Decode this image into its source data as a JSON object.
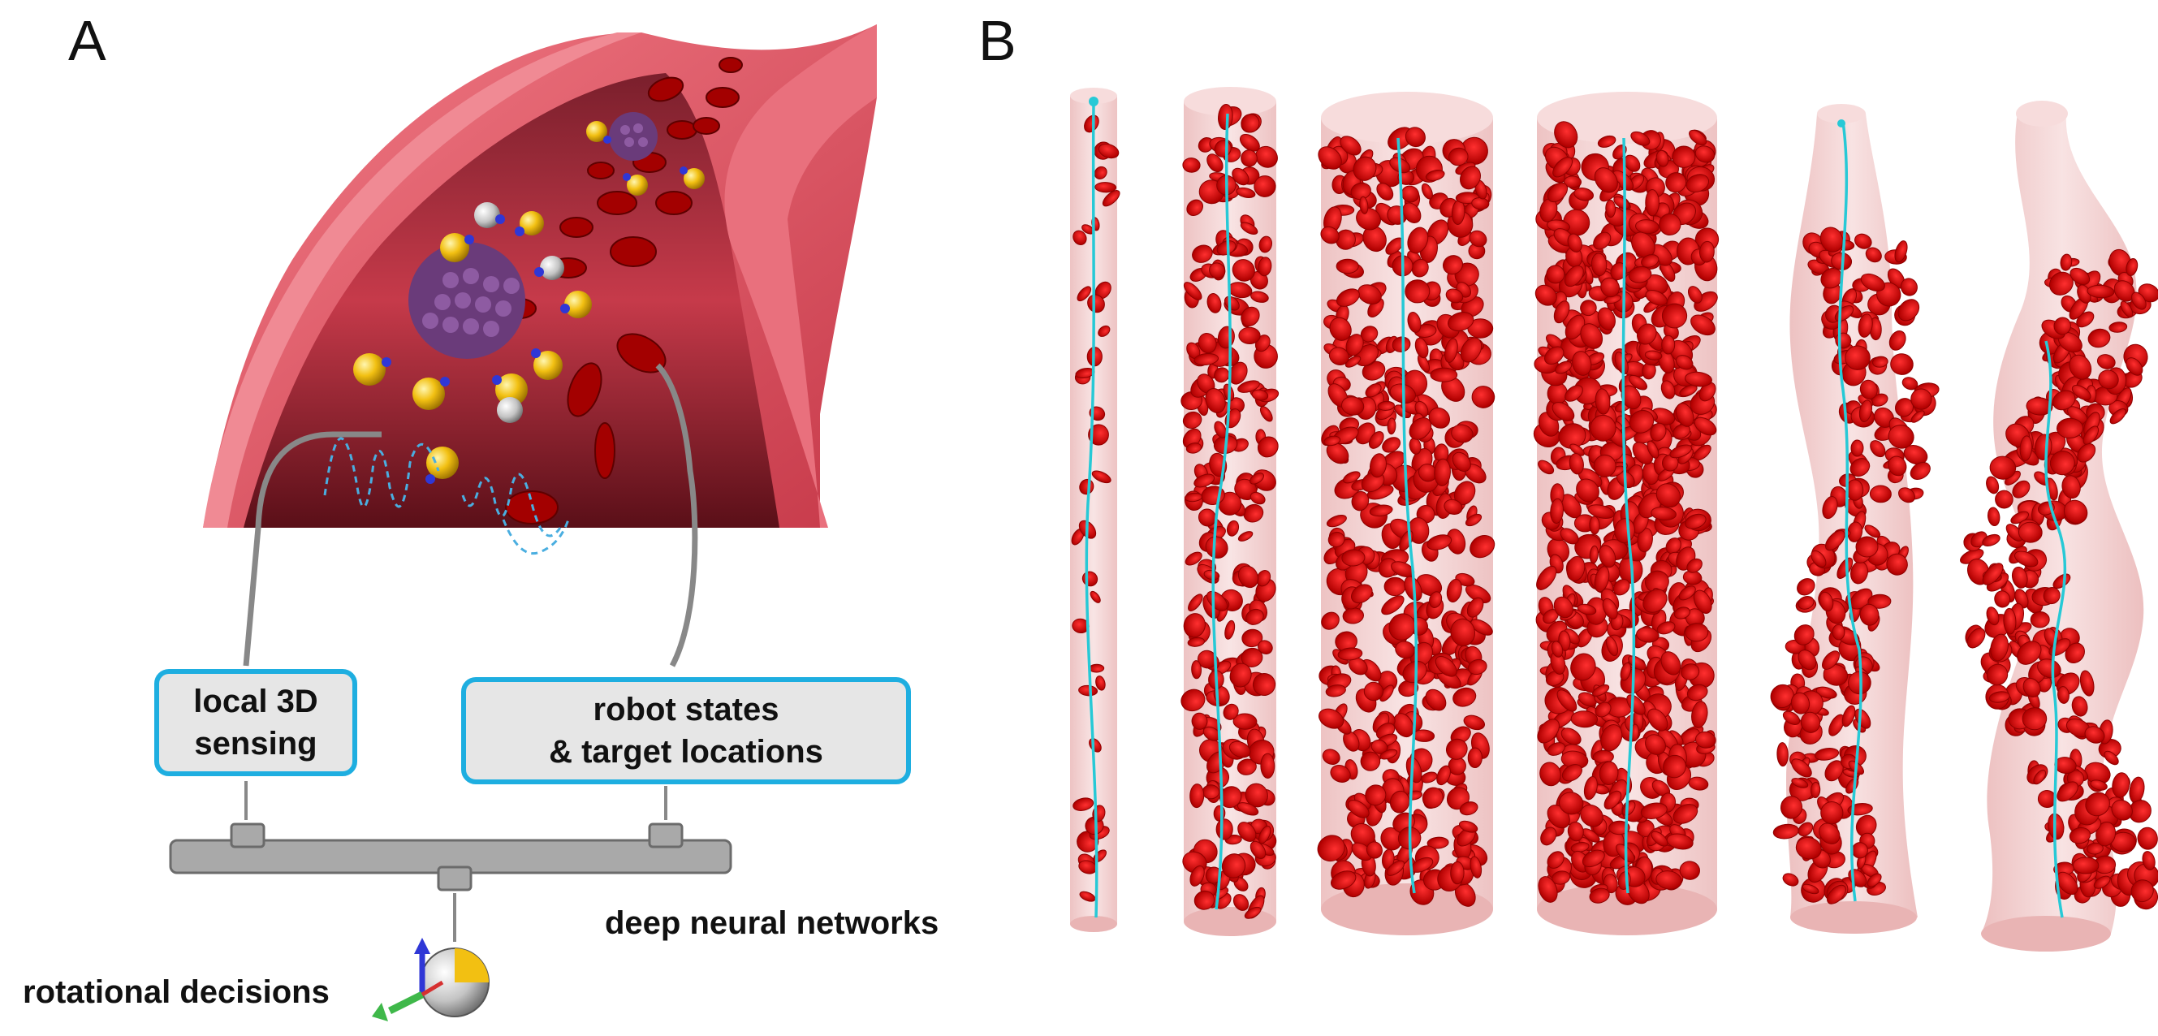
{
  "panels": {
    "a": "A",
    "b": "B"
  },
  "labels": {
    "local_sensing": "local 3D\nsensing",
    "robot_states": "robot states\n& target locations",
    "dnn": "deep neural networks",
    "rotational": "rotational decisions"
  },
  "colors": {
    "vessel": "#e45a68",
    "vessel_dark": "#b3303f",
    "rbc": "#d81010",
    "rbc_dark": "#8e0000",
    "trajectory": "#27c9d6",
    "tube": "#f3c9c9",
    "box_border": "#1eaee0",
    "box_fill": "#e6e6e6",
    "network": "#a9a9a9",
    "robot_gold": "#f2c012",
    "robot_blue": "#2f37d6"
  },
  "tubes": [
    "straight-thin",
    "straight-medium",
    "straight-wide",
    "straight-wider",
    "wavy-1",
    "wavy-2"
  ]
}
